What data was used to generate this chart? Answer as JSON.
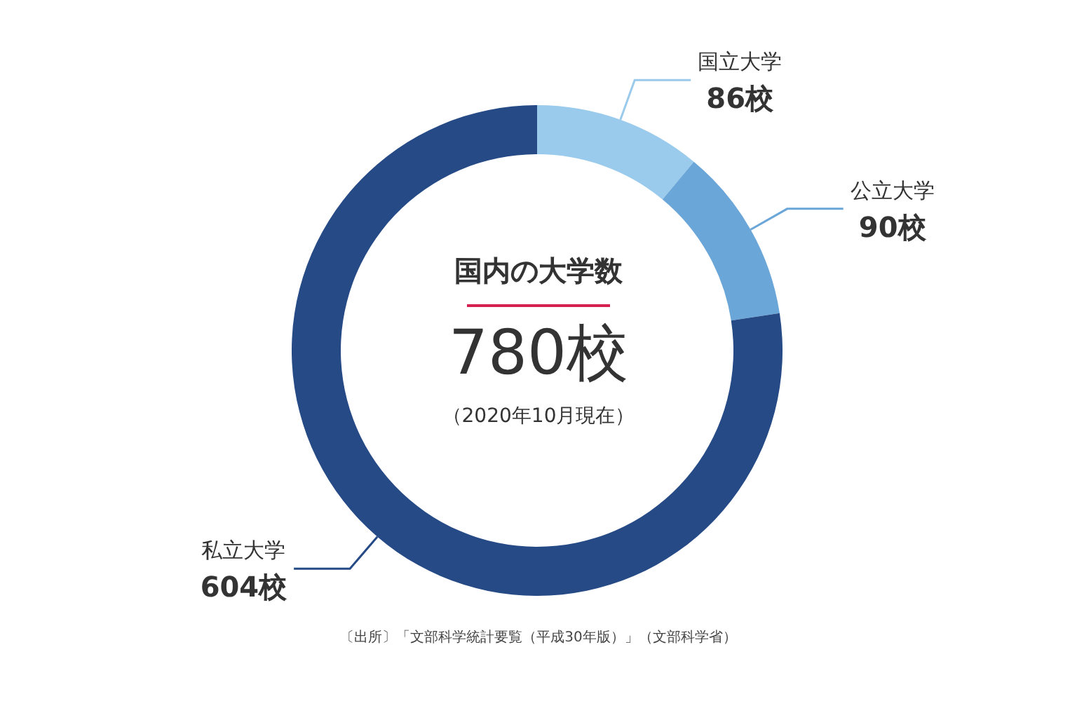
{
  "chart_data": {
    "type": "donut",
    "title": "国内の大学数",
    "categories": [
      "国立大学",
      "公立大学",
      "私立大学"
    ],
    "values": [
      86,
      90,
      604
    ],
    "colors": [
      "#9acbec",
      "#6aa6d8",
      "#254a86"
    ],
    "value_labels": [
      "86校",
      "90校",
      "604校"
    ],
    "legend": false,
    "annotations": [
      "780校",
      "（2020年10月現在）",
      "〔出所〕「文部科学統計要覧（平成30年版）」（文部科学省）"
    ]
  }
}
